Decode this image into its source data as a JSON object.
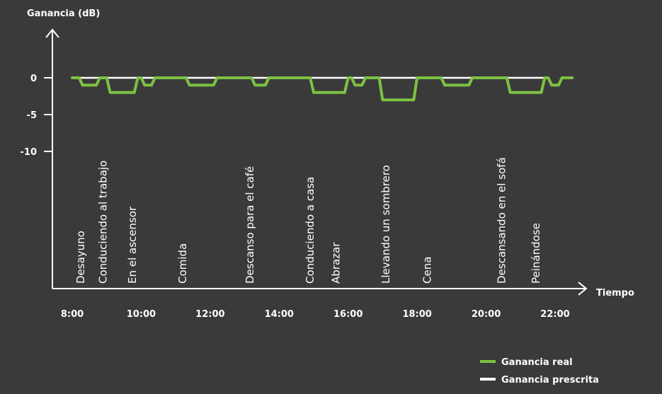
{
  "chart_data": {
    "type": "line",
    "ylabel": "Ganancia (dB)",
    "xlabel": "Tiempo",
    "x_unit": "hours",
    "xlim": [
      7.75,
      22.25
    ],
    "ylim": [
      -12,
      5.2
    ],
    "y_ticks": [
      {
        "value": 0,
        "label": "0"
      },
      {
        "value": -5,
        "label": "-5"
      },
      {
        "value": -10,
        "label": "-10"
      }
    ],
    "x_ticks": [
      {
        "value": 8,
        "label": "8:00"
      },
      {
        "value": 10,
        "label": "10:00"
      },
      {
        "value": 12,
        "label": "12:00"
      },
      {
        "value": 14,
        "label": "14:00"
      },
      {
        "value": 16,
        "label": "16:00"
      },
      {
        "value": 18,
        "label": "18:00"
      },
      {
        "value": 20,
        "label": "20:00"
      },
      {
        "value": 22,
        "label": "22:00"
      }
    ],
    "activities": [
      {
        "time": 8.35,
        "label": "Desayuno"
      },
      {
        "time": 9.0,
        "label": "Conduciendo al trabajo"
      },
      {
        "time": 9.85,
        "label": "En el ascensor"
      },
      {
        "time": 11.3,
        "label": "Comida"
      },
      {
        "time": 13.25,
        "label": "Descanso para el café"
      },
      {
        "time": 15.0,
        "label": "Conduciendo a casa"
      },
      {
        "time": 15.75,
        "label": "Abrazar"
      },
      {
        "time": 17.2,
        "label": "Llevando un sombrero"
      },
      {
        "time": 18.4,
        "label": "Cena"
      },
      {
        "time": 20.55,
        "label": "Descansando en el sofá"
      },
      {
        "time": 21.55,
        "label": "Peinándose"
      }
    ],
    "series": [
      {
        "name": "Ganancia prescrita",
        "color": "#ffffff",
        "x": [
          8.0,
          21.75
        ],
        "y": [
          0,
          0
        ]
      },
      {
        "name": "Ganancia real",
        "color": "#7cc242",
        "x": [
          8.0,
          8.2,
          8.3,
          8.7,
          8.8,
          9.0,
          9.1,
          9.8,
          9.9,
          10.0,
          10.1,
          10.3,
          10.4,
          11.3,
          11.4,
          12.1,
          12.2,
          13.2,
          13.3,
          13.6,
          13.7,
          14.9,
          15.0,
          15.9,
          16.0,
          16.1,
          16.2,
          16.4,
          16.5,
          16.9,
          17.0,
          17.9,
          18.0,
          18.7,
          18.8,
          19.5,
          19.6,
          20.6,
          20.7,
          21.6,
          21.7,
          21.8,
          21.9,
          22.1,
          22.2,
          22.5
        ],
        "y": [
          0,
          0,
          -1,
          -1,
          0,
          0,
          -2,
          -2,
          0,
          0,
          -1,
          -1,
          0,
          0,
          -1,
          -1,
          0,
          0,
          -1,
          -1,
          0,
          0,
          -2,
          -2,
          0,
          0,
          -1,
          -1,
          0,
          0,
          -3,
          -3,
          0,
          0,
          -1,
          -1,
          0,
          0,
          -2,
          -2,
          0,
          0,
          -1,
          -1,
          0,
          0
        ]
      }
    ]
  },
  "legend": [
    {
      "label": "Ganancia real",
      "color": "#7cc242"
    },
    {
      "label": "Ganancia prescrita",
      "color": "#ffffff"
    }
  ]
}
